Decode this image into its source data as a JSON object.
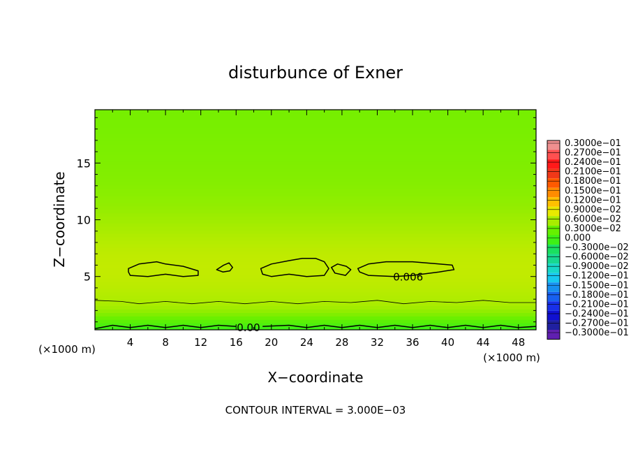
{
  "chart_data": {
    "type": "heatmap",
    "title": "disturbunce of Exner",
    "xlabel": "X−coordinate",
    "ylabel": "Z−coordinate",
    "x_unit_left": "(×1000 m)",
    "x_unit_right": "(×1000 m)",
    "footer": "CONTOUR INTERVAL = 3.000E−03",
    "xlim": [
      0,
      50
    ],
    "ylim": [
      0.3,
      19.7
    ],
    "xticks": [
      4,
      8,
      12,
      16,
      20,
      24,
      28,
      32,
      36,
      40,
      44,
      48
    ],
    "yticks": [
      5,
      10,
      15
    ],
    "field": {
      "base_value": 0.0045,
      "peak_value": 0.0072,
      "peak_height": 5.8,
      "surface_value": -0.0006
    },
    "contours": [
      {
        "level": 0.006,
        "label": "0.006",
        "label_at": [
          35.5,
          5.0
        ],
        "closed": true,
        "paths": [
          [
            [
              3.8,
              5.7
            ],
            [
              5,
              6.1
            ],
            [
              7,
              6.3
            ],
            [
              8,
              6.1
            ],
            [
              10,
              5.9
            ],
            [
              11.7,
              5.5
            ],
            [
              11.7,
              5.1
            ],
            [
              10,
              5.0
            ],
            [
              8,
              5.2
            ],
            [
              6,
              5.0
            ],
            [
              4,
              5.1
            ],
            [
              3.8,
              5.4
            ]
          ],
          [
            [
              13.8,
              5.6
            ],
            [
              14.6,
              6.0
            ],
            [
              15.2,
              6.2
            ],
            [
              15.6,
              5.8
            ],
            [
              15.3,
              5.5
            ],
            [
              14.5,
              5.4
            ]
          ],
          [
            [
              18.8,
              5.7
            ],
            [
              20,
              6.1
            ],
            [
              22,
              6.4
            ],
            [
              23.5,
              6.6
            ],
            [
              25,
              6.6
            ],
            [
              26,
              6.3
            ],
            [
              26.5,
              5.7
            ],
            [
              26,
              5.1
            ],
            [
              24,
              5.0
            ],
            [
              22,
              5.2
            ],
            [
              20,
              5.0
            ],
            [
              19,
              5.2
            ]
          ],
          [
            [
              26.8,
              5.8
            ],
            [
              27.5,
              6.1
            ],
            [
              28.5,
              5.9
            ],
            [
              29,
              5.6
            ],
            [
              28.4,
              5.1
            ],
            [
              27.2,
              5.3
            ]
          ],
          [
            [
              29.8,
              5.7
            ],
            [
              31,
              6.1
            ],
            [
              33,
              6.3
            ],
            [
              36,
              6.3
            ],
            [
              39,
              6.1
            ],
            [
              40.5,
              6.0
            ],
            [
              40.7,
              5.6
            ],
            [
              39,
              5.4
            ],
            [
              36,
              5.1
            ],
            [
              34,
              5.0
            ],
            [
              31,
              5.1
            ],
            [
              30,
              5.4
            ]
          ]
        ]
      },
      {
        "level": 0.003,
        "label": "",
        "closed": false,
        "paths": [
          [
            [
              0,
              2.9
            ],
            [
              3,
              2.8
            ],
            [
              5,
              2.6
            ],
            [
              8,
              2.8
            ],
            [
              11,
              2.6
            ],
            [
              14,
              2.8
            ],
            [
              17,
              2.6
            ],
            [
              20,
              2.8
            ],
            [
              23,
              2.6
            ],
            [
              26,
              2.8
            ],
            [
              29,
              2.7
            ],
            [
              32,
              2.9
            ],
            [
              35,
              2.6
            ],
            [
              38,
              2.8
            ],
            [
              41,
              2.7
            ],
            [
              44,
              2.9
            ],
            [
              47,
              2.7
            ],
            [
              50,
              2.7
            ]
          ]
        ]
      },
      {
        "level": 0.0,
        "label": "0.00",
        "label_at": [
          17.4,
          0.55
        ],
        "closed": false,
        "paths": [
          [
            [
              0,
              0.4
            ],
            [
              2,
              0.7
            ],
            [
              4,
              0.5
            ],
            [
              6,
              0.7
            ],
            [
              8,
              0.5
            ],
            [
              10,
              0.7
            ],
            [
              12,
              0.5
            ],
            [
              14,
              0.7
            ],
            [
              16,
              0.6
            ]
          ],
          [
            [
              19,
              0.6
            ],
            [
              22,
              0.7
            ],
            [
              24,
              0.5
            ],
            [
              26,
              0.7
            ],
            [
              28,
              0.5
            ],
            [
              30,
              0.7
            ],
            [
              32,
              0.5
            ],
            [
              34,
              0.7
            ],
            [
              36,
              0.5
            ],
            [
              38,
              0.7
            ],
            [
              40,
              0.5
            ],
            [
              42,
              0.7
            ],
            [
              44,
              0.5
            ],
            [
              46,
              0.7
            ],
            [
              48,
              0.5
            ],
            [
              50,
              0.6
            ]
          ]
        ]
      }
    ],
    "colorbar": {
      "levels": [
        0.03,
        0.027,
        0.024,
        0.021,
        0.018,
        0.015,
        0.012,
        0.009,
        0.006,
        0.003,
        0.0,
        -0.003,
        -0.006,
        -0.009,
        -0.012,
        -0.015,
        -0.018,
        -0.021,
        -0.024,
        -0.027,
        -0.03
      ],
      "labels": [
        "0.3000e−01",
        "0.2700e−01",
        "0.2400e−01",
        "0.2100e−01",
        "0.1800e−01",
        "0.1500e−01",
        "0.1200e−01",
        "0.9000e−02",
        "0.6000e−02",
        "0.3000e−02",
        "0.000",
        "−0.3000e−02",
        "−0.6000e−02",
        "−0.9000e−02",
        "−0.1200e−01",
        "−0.1500e−01",
        "−0.1800e−01",
        "−0.2100e−01",
        "−0.2400e−01",
        "−0.2700e−01",
        "−0.3000e−01"
      ],
      "colors": [
        "#f09090",
        "#ff5050",
        "#ff1a1a",
        "#f03818",
        "#ff5a00",
        "#ff8c00",
        "#ffc000",
        "#e8ea00",
        "#a8ec00",
        "#66f000",
        "#3ef016",
        "#1ae060",
        "#18d890",
        "#18d8c8",
        "#18c8f0",
        "#1890f0",
        "#1860f0",
        "#1830e8",
        "#1010d0",
        "#2020a0",
        "#6020b0"
      ]
    }
  }
}
